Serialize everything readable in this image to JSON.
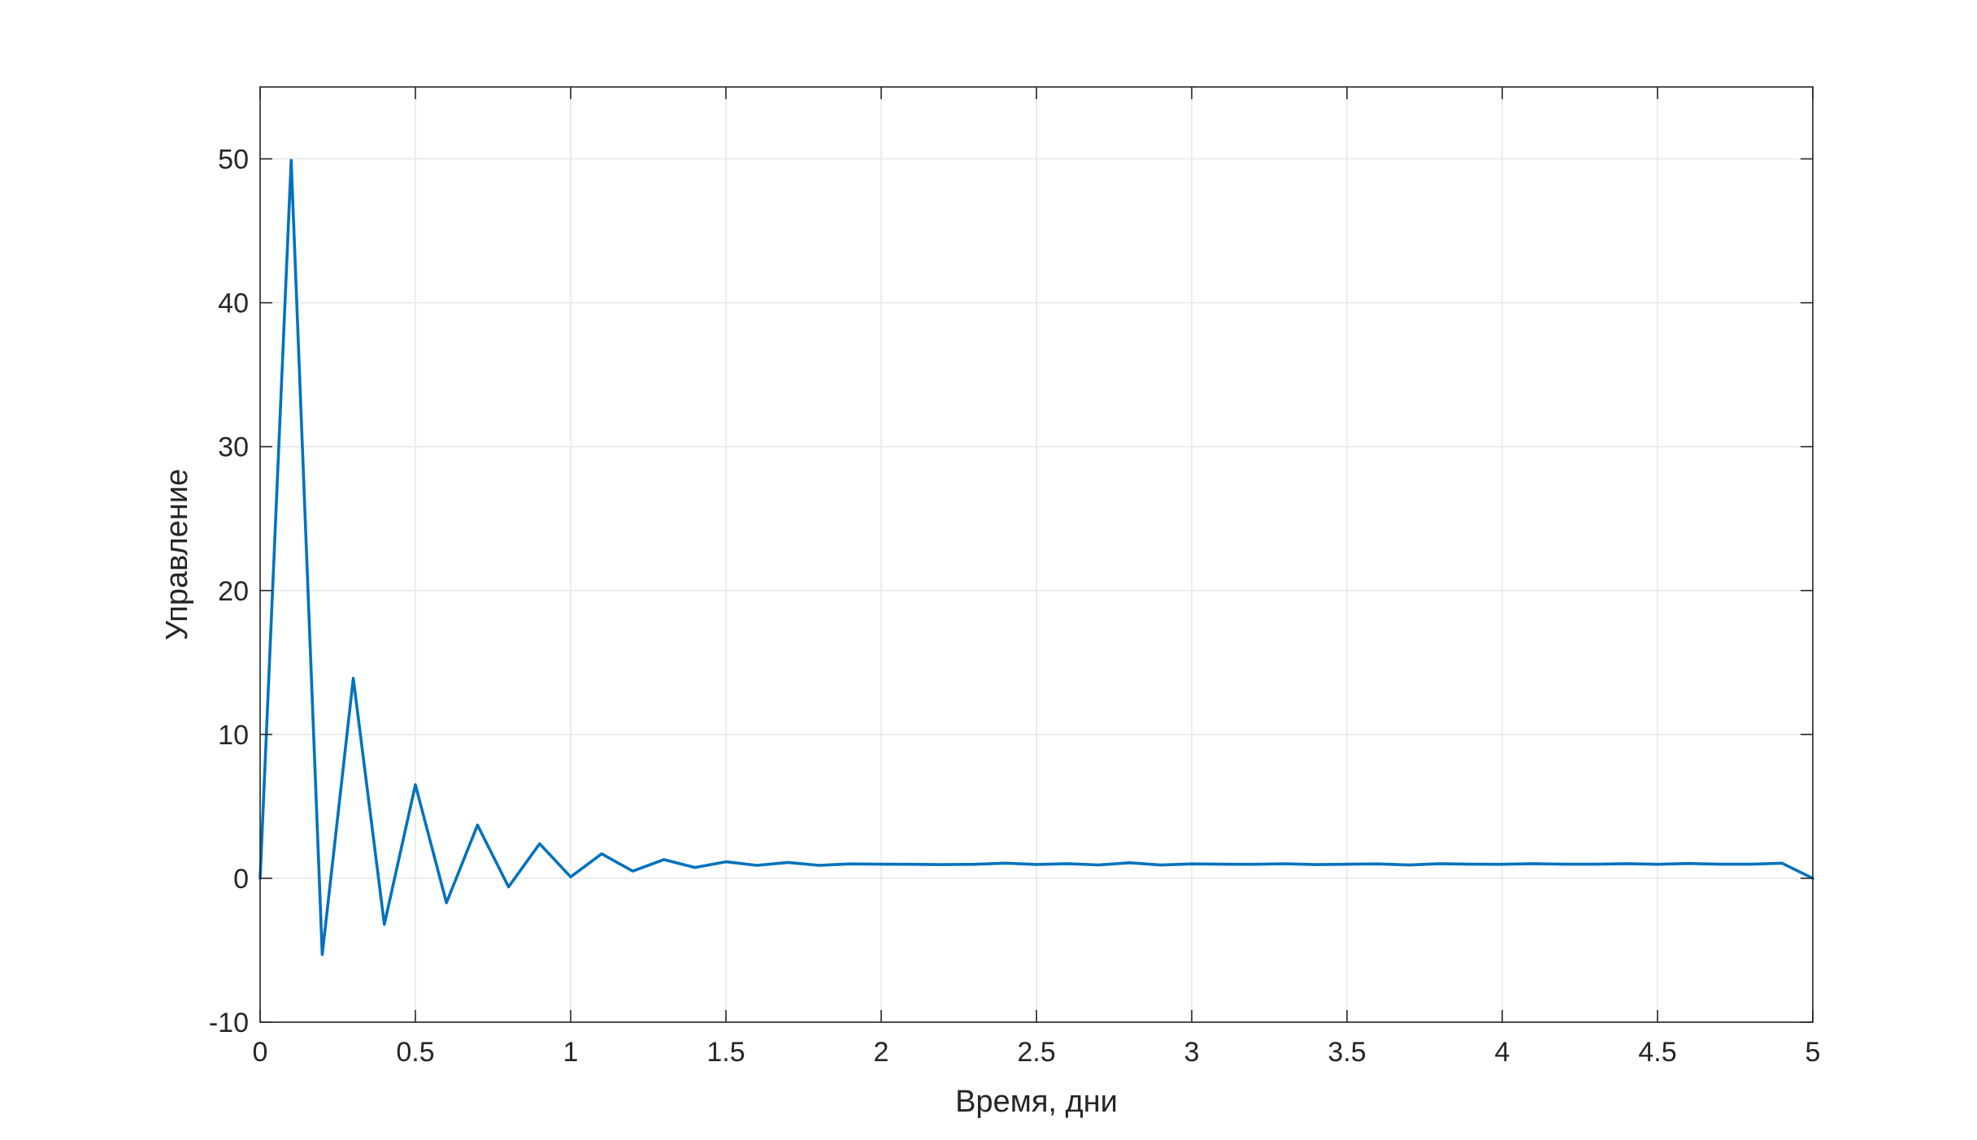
{
  "chart_data": {
    "type": "line",
    "title": "",
    "xlabel": "Время, дни",
    "ylabel": "Управление",
    "xlim": [
      0,
      5
    ],
    "ylim": [
      -10,
      55
    ],
    "xticks": [
      0,
      0.5,
      1,
      1.5,
      2,
      2.5,
      3,
      3.5,
      4,
      4.5,
      5
    ],
    "xtick_labels": [
      "0",
      "0.5",
      "1",
      "1.5",
      "2",
      "2.5",
      "3",
      "3.5",
      "4",
      "4.5",
      "5"
    ],
    "yticks": [
      -10,
      0,
      10,
      20,
      30,
      40,
      50
    ],
    "ytick_labels": [
      "-10",
      "0",
      "10",
      "20",
      "30",
      "40",
      "50"
    ],
    "grid": true,
    "legend": "none",
    "series": [
      {
        "color": "#0072BD",
        "x": [
          0,
          0.1,
          0.2,
          0.3,
          0.4,
          0.5,
          0.6,
          0.7,
          0.8,
          0.9,
          1.0,
          1.1,
          1.2,
          1.3,
          1.4,
          1.5,
          1.6,
          1.7,
          1.8,
          1.9,
          2.0,
          2.1,
          2.2,
          2.3,
          2.4,
          2.5,
          2.6,
          2.7,
          2.8,
          2.9,
          3.0,
          3.1,
          3.2,
          3.3,
          3.4,
          3.5,
          3.6,
          3.7,
          3.8,
          3.9,
          4.0,
          4.1,
          4.2,
          4.3,
          4.4,
          4.5,
          4.6,
          4.7,
          4.8,
          4.9,
          5.0
        ],
        "y": [
          0,
          49.9,
          -5.3,
          13.9,
          -3.2,
          6.5,
          -1.7,
          3.7,
          -0.6,
          2.4,
          0.1,
          1.7,
          0.5,
          1.3,
          0.75,
          1.15,
          0.9,
          1.1,
          0.9,
          1.0,
          0.98,
          0.97,
          0.95,
          0.97,
          1.05,
          0.96,
          1.02,
          0.93,
          1.08,
          0.92,
          1.0,
          0.98,
          0.97,
          1.01,
          0.95,
          0.98,
          1.0,
          0.92,
          1.02,
          0.98,
          0.97,
          1.02,
          0.98,
          0.98,
          1.02,
          0.97,
          1.03,
          0.98,
          0.98,
          1.05,
          0
        ]
      }
    ]
  },
  "colors": {
    "line": "#0072BD",
    "grid": "#e6e6e6",
    "axes": "#262626"
  }
}
